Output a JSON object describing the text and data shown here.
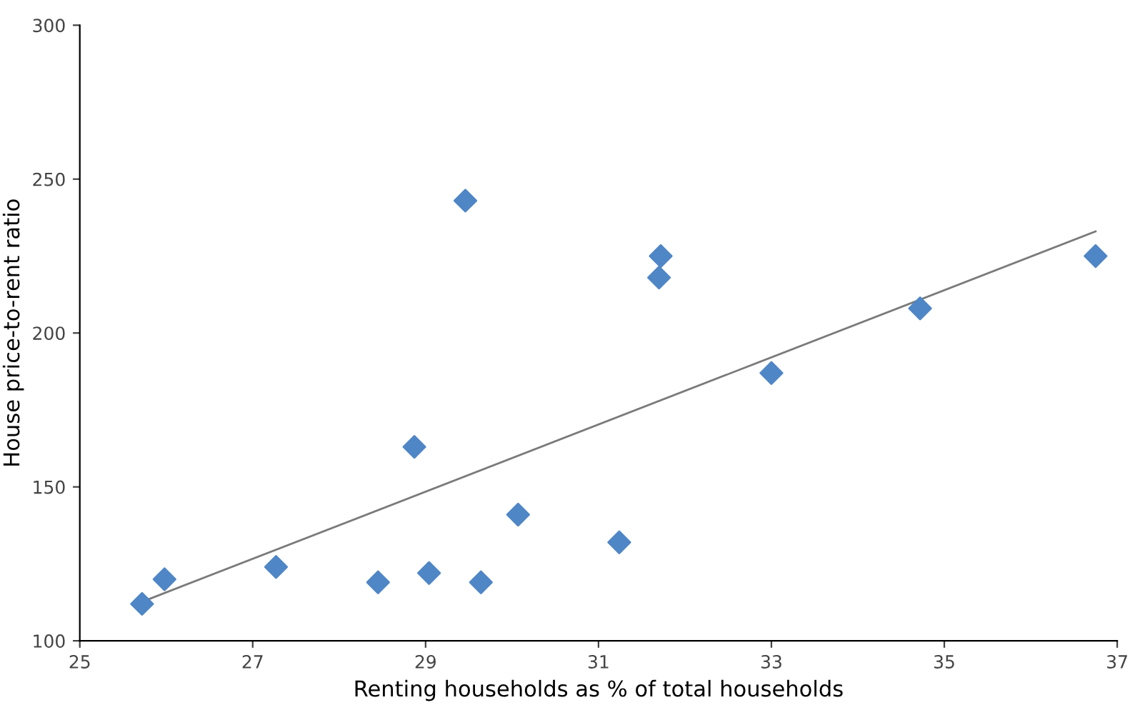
{
  "chart_data": {
    "type": "scatter",
    "xlabel": "Renting households as % of total households",
    "ylabel": "House price-to-rent ratio",
    "xlim": [
      25,
      37
    ],
    "xticks": [
      25,
      27,
      29,
      31,
      33,
      35,
      37
    ],
    "ylim": [
      100,
      300
    ],
    "yticks": [
      100,
      150,
      200,
      250,
      300
    ],
    "grid": false,
    "marker": "diamond",
    "series": [
      {
        "color": "#4f86c6",
        "x": [
          25.72,
          25.98,
          27.27,
          28.45,
          28.87,
          29.04,
          29.46,
          29.64,
          30.07,
          31.24,
          31.7,
          31.72,
          33.0,
          34.72,
          36.75
        ],
        "values": [
          112,
          120,
          124,
          119,
          163,
          122,
          243,
          119,
          141,
          132,
          218,
          225,
          187,
          208,
          225
        ]
      },
      {
        "type": "line",
        "color": "#7a7a7a",
        "x": [
          25.75,
          36.75
        ],
        "values": [
          113,
          233
        ],
        "marker": "none",
        "line_style": "solid"
      }
    ]
  }
}
